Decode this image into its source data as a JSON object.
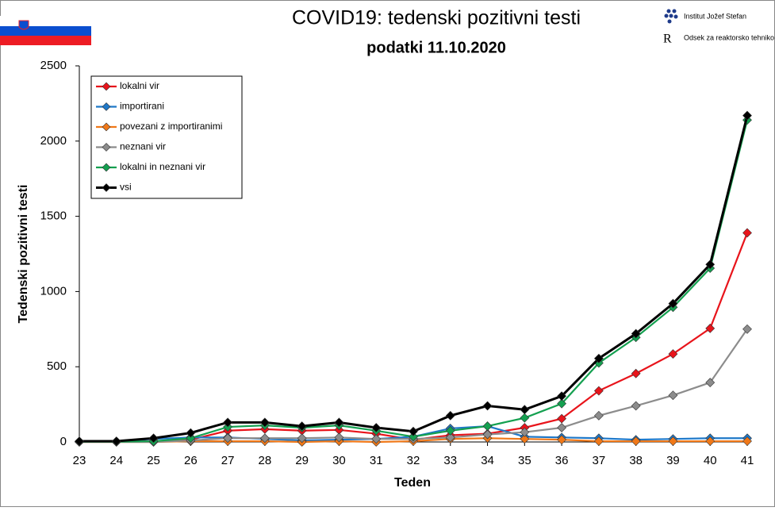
{
  "chart_data": {
    "type": "line",
    "title": "COVID19: tedenski pozitivni testi",
    "subtitle": "podatki 11.10.2020",
    "logo_texts": [
      "Institut Jožef Stefan",
      "Odsek za reaktorsko tehniko"
    ],
    "x_label": "Teden",
    "y_label": "Tedenski pozitivni testi",
    "categories": [
      "23",
      "24",
      "25",
      "26",
      "27",
      "28",
      "29",
      "30",
      "31",
      "32",
      "33",
      "34",
      "35",
      "36",
      "37",
      "38",
      "39",
      "40",
      "41"
    ],
    "ylim": [
      0,
      2500
    ],
    "yticks": [
      0,
      500,
      1000,
      1500,
      2000,
      2500
    ],
    "grid": false,
    "legend": "top-left",
    "series": [
      {
        "name": "lokalni vir",
        "color": "#e8141b",
        "values": [
          2,
          2,
          5,
          15,
          75,
          85,
          75,
          80,
          55,
          15,
          45,
          55,
          95,
          155,
          340,
          455,
          585,
          755,
          1390
        ]
      },
      {
        "name": "importirani",
        "color": "#1f78c8",
        "values": [
          3,
          3,
          20,
          30,
          30,
          20,
          10,
          15,
          20,
          35,
          90,
          105,
          35,
          30,
          25,
          15,
          20,
          25,
          25
        ]
      },
      {
        "name": "povezani z importiranimi",
        "color": "#f07818",
        "values": [
          0,
          0,
          0,
          5,
          5,
          5,
          0,
          5,
          0,
          5,
          20,
          25,
          20,
          15,
          5,
          5,
          5,
          5,
          5
        ]
      },
      {
        "name": "neznani vir",
        "color": "#8c8c8c",
        "values": [
          0,
          0,
          0,
          10,
          25,
          25,
          25,
          30,
          20,
          20,
          30,
          50,
          65,
          95,
          175,
          240,
          310,
          395,
          750
        ]
      },
      {
        "name": "lokalni in neznani vir",
        "color": "#14a050",
        "values": [
          2,
          2,
          5,
          25,
          100,
          110,
          95,
          110,
          75,
          35,
          75,
          105,
          160,
          255,
          525,
          695,
          895,
          1155,
          2140
        ]
      },
      {
        "name": "vsi",
        "color": "#000000",
        "values": [
          5,
          5,
          25,
          60,
          130,
          130,
          105,
          130,
          95,
          70,
          175,
          240,
          215,
          305,
          555,
          720,
          920,
          1180,
          2170
        ]
      }
    ]
  }
}
